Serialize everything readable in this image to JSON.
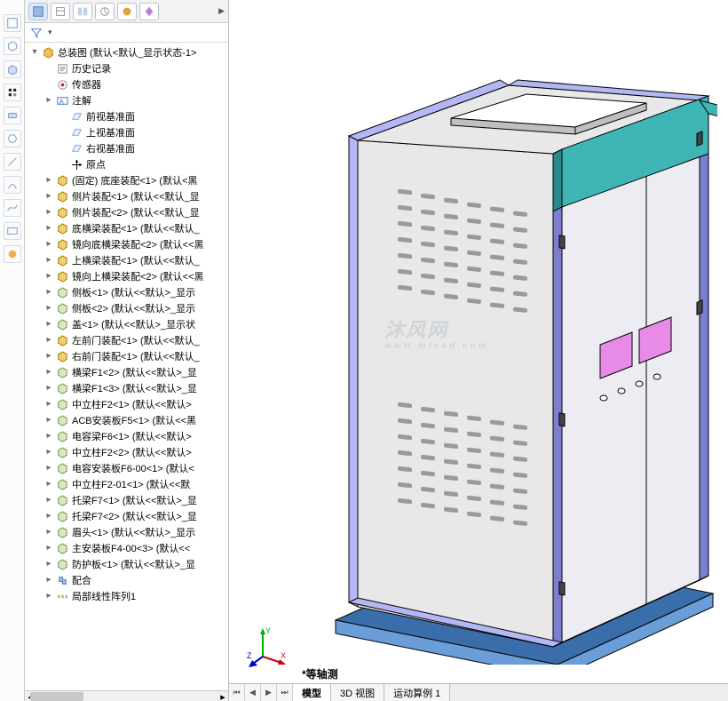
{
  "iconbar": {
    "items": [
      {
        "name": "sketch-icon"
      },
      {
        "name": "sketch3d-icon"
      },
      {
        "name": "body-icon"
      },
      {
        "name": "pattern-icon"
      },
      {
        "name": "feature-icon"
      },
      {
        "name": "hole-icon"
      },
      {
        "name": "line-icon"
      },
      {
        "name": "arc-icon"
      },
      {
        "name": "spline-icon"
      },
      {
        "name": "display-icon"
      },
      {
        "name": "appearance-icon"
      }
    ]
  },
  "panel_tabs": [
    {
      "name": "feature-tree-tab",
      "active": true
    },
    {
      "name": "property-tab",
      "active": false
    },
    {
      "name": "config-tab",
      "active": false
    },
    {
      "name": "dim-tab",
      "active": false
    },
    {
      "name": "display-tab",
      "active": false
    },
    {
      "name": "render-tab",
      "active": false
    }
  ],
  "tree": {
    "root": "总装图  (默认<默认_显示状态-1>",
    "items": [
      {
        "i": "history",
        "exp": "",
        "lbl": "历史记录",
        "ind": 1
      },
      {
        "i": "sensor",
        "exp": "",
        "lbl": "传感器",
        "ind": 1
      },
      {
        "i": "ann",
        "exp": "▸",
        "lbl": "注解",
        "ind": 1
      },
      {
        "i": "plane",
        "exp": "",
        "lbl": "前视基准面",
        "ind": 2
      },
      {
        "i": "plane",
        "exp": "",
        "lbl": "上视基准面",
        "ind": 2
      },
      {
        "i": "plane",
        "exp": "",
        "lbl": "右视基准面",
        "ind": 2
      },
      {
        "i": "origin",
        "exp": "",
        "lbl": "原点",
        "ind": 2
      },
      {
        "i": "asm",
        "exp": "▸",
        "lbl": "(固定) 底座装配<1> (默认<黑",
        "ind": 1
      },
      {
        "i": "asm",
        "exp": "▸",
        "lbl": "侧片装配<1> (默认<<默认_显",
        "ind": 1
      },
      {
        "i": "asm",
        "exp": "▸",
        "lbl": "侧片装配<2> (默认<<默认_显",
        "ind": 1
      },
      {
        "i": "asm",
        "exp": "▸",
        "lbl": "底横梁装配<1> (默认<<默认_",
        "ind": 1
      },
      {
        "i": "asm",
        "exp": "▸",
        "lbl": "镜向底横梁装配<2> (默认<<黑",
        "ind": 1
      },
      {
        "i": "asm",
        "exp": "▸",
        "lbl": "上横梁装配<1> (默认<<默认_",
        "ind": 1
      },
      {
        "i": "asm",
        "exp": "▸",
        "lbl": "镜向上横梁装配<2> (默认<<黑",
        "ind": 1
      },
      {
        "i": "part",
        "exp": "▸",
        "lbl": "侧板<1> (默认<<默认>_显示",
        "ind": 1
      },
      {
        "i": "part",
        "exp": "▸",
        "lbl": "侧板<2> (默认<<默认>_显示",
        "ind": 1
      },
      {
        "i": "part",
        "exp": "▸",
        "lbl": "盖<1> (默认<<默认>_显示状",
        "ind": 1
      },
      {
        "i": "asm",
        "exp": "▸",
        "lbl": "左前门装配<1> (默认<<默认_",
        "ind": 1
      },
      {
        "i": "asm",
        "exp": "▸",
        "lbl": "右前门装配<1> (默认<<默认_",
        "ind": 1
      },
      {
        "i": "part",
        "exp": "▸",
        "lbl": "横梁F1<2> (默认<<默认>_显",
        "ind": 1
      },
      {
        "i": "part",
        "exp": "▸",
        "lbl": "横梁F1<3> (默认<<默认>_显",
        "ind": 1
      },
      {
        "i": "part",
        "exp": "▸",
        "lbl": "中立柱F2<1> (默认<<默认>",
        "ind": 1
      },
      {
        "i": "part",
        "exp": "▸",
        "lbl": "ACB安装板F5<1> (默认<<黑",
        "ind": 1
      },
      {
        "i": "part",
        "exp": "▸",
        "lbl": "电容梁F6<1> (默认<<默认>",
        "ind": 1
      },
      {
        "i": "part",
        "exp": "▸",
        "lbl": "中立柱F2<2> (默认<<默认>",
        "ind": 1
      },
      {
        "i": "part",
        "exp": "▸",
        "lbl": "电容安装板F6-00<1> (默认<",
        "ind": 1
      },
      {
        "i": "part",
        "exp": "▸",
        "lbl": "中立柱F2-01<1> (默认<<默",
        "ind": 1
      },
      {
        "i": "part",
        "exp": "▸",
        "lbl": "托梁F7<1> (默认<<默认>_显",
        "ind": 1
      },
      {
        "i": "part",
        "exp": "▸",
        "lbl": "托梁F7<2> (默认<<默认>_显",
        "ind": 1
      },
      {
        "i": "part",
        "exp": "▸",
        "lbl": "眉头<1> (默认<<默认>_显示",
        "ind": 1
      },
      {
        "i": "part",
        "exp": "▸",
        "lbl": "主安装板F4-00<3> (默认<<",
        "ind": 1
      },
      {
        "i": "part",
        "exp": "▸",
        "lbl": "防护板<1> (默认<<默认>_显",
        "ind": 1
      },
      {
        "i": "mate",
        "exp": "▸",
        "lbl": "配合",
        "ind": 1
      },
      {
        "i": "pattern",
        "exp": "▸",
        "lbl": "局部线性阵列1",
        "ind": 1
      }
    ]
  },
  "viewport": {
    "watermark": "沐风网",
    "watermark_sub": "www.mfcad.com",
    "view_label": "*等轴测",
    "axes": {
      "x": "X",
      "y": "Y",
      "z": "Z"
    },
    "tabs": [
      {
        "lbl": "模型",
        "active": true
      },
      {
        "lbl": "3D 视图",
        "active": false
      },
      {
        "lbl": "运动算例 1",
        "active": false
      }
    ]
  },
  "model_colors": {
    "panel_face": "#e8e8e8",
    "panel_side": "#bdbfc2",
    "edge": "#000000",
    "frame_front": "#b3b7f5",
    "frame_side": "#7a7fd0",
    "base_front": "#6b9dd8",
    "base_top": "#3a6eaa",
    "header_front": "#3fb5b5",
    "header_side": "#2a8a8a",
    "screen": "#e88ae8",
    "door": "#ececf2",
    "vent": "#9a9a9a"
  }
}
